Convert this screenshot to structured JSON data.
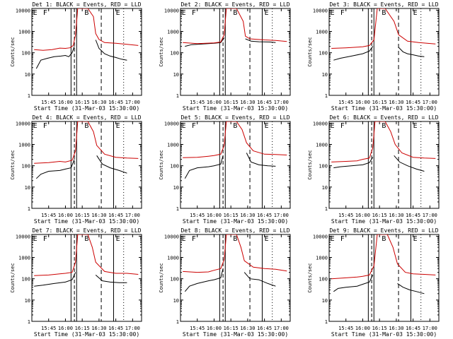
{
  "figure": {
    "xtick_labels": [
      "15:45",
      "16:00",
      "16:15",
      "16:30",
      "16:45",
      "17:00"
    ],
    "xlabel": "Start Time (31-Mar-03 15:30:00)",
    "ylabel": "Counts/sec",
    "ytick_labels": [
      "1",
      "10",
      "100",
      "1000",
      "10000"
    ]
  },
  "chart_data": [
    {
      "type": "line",
      "title": "Det 1: BLACK = Events, RED = LLD",
      "xlim": [
        "15:30",
        "17:08"
      ],
      "ylim": [
        1,
        12000
      ],
      "yscale": "log",
      "markers": [
        "E",
        "F",
        "B",
        "E"
      ],
      "series": [
        {
          "name": "Events",
          "color": "#000000",
          "x": [
            "15:34",
            "15:38",
            "15:44",
            "15:50",
            "15:56",
            "16:00",
            "16:03",
            "16:06",
            "16:08"
          ],
          "y": [
            18,
            45,
            55,
            65,
            70,
            75,
            65,
            100,
            200
          ]
        },
        {
          "name": "Events",
          "color": "#000000",
          "x": [
            "16:27",
            "16:30",
            "16:35",
            "16:40",
            "16:45",
            "16:50",
            "16:55"
          ],
          "y": [
            400,
            160,
            90,
            70,
            60,
            50,
            45
          ]
        },
        {
          "name": "LLD",
          "color": "#cc0000",
          "x": [
            "15:32",
            "15:40",
            "15:48",
            "15:55",
            "16:00",
            "16:04",
            "16:07",
            "16:09",
            "16:11",
            "16:20",
            "16:25",
            "16:27",
            "16:30",
            "16:35",
            "16:45",
            "16:55",
            "17:05"
          ],
          "y": [
            140,
            130,
            140,
            165,
            160,
            170,
            220,
            700,
            12000,
            12000,
            5000,
            800,
            420,
            300,
            280,
            250,
            220
          ]
        }
      ]
    },
    {
      "type": "line",
      "title": "Det 2: BLACK = Events, RED = LLD",
      "xlim": [
        "15:30",
        "17:08"
      ],
      "ylim": [
        1,
        12000
      ],
      "yscale": "log",
      "markers": [
        "E",
        "F",
        "B",
        "E"
      ],
      "series": [
        {
          "name": "Events",
          "color": "#000000",
          "x": [
            "15:34",
            "15:40",
            "15:50",
            "16:00",
            "16:06",
            "16:09"
          ],
          "y": [
            200,
            240,
            260,
            280,
            300,
            500
          ]
        },
        {
          "name": "Events",
          "color": "#000000",
          "x": [
            "16:28",
            "16:33",
            "16:40",
            "16:50",
            "16:55"
          ],
          "y": [
            450,
            350,
            330,
            320,
            300
          ]
        },
        {
          "name": "LLD",
          "color": "#cc0000",
          "x": [
            "15:32",
            "15:45",
            "16:00",
            "16:06",
            "16:09",
            "16:11",
            "16:20",
            "16:26",
            "16:28",
            "16:32",
            "16:45",
            "16:55",
            "17:05"
          ],
          "y": [
            300,
            270,
            290,
            320,
            700,
            12000,
            12000,
            3000,
            600,
            450,
            400,
            380,
            340
          ]
        }
      ]
    },
    {
      "type": "line",
      "title": "Det 3: BLACK = Events, RED = LLD",
      "xlim": [
        "15:30",
        "17:08"
      ],
      "ylim": [
        1,
        12000
      ],
      "yscale": "log",
      "markers": [
        "E",
        "F",
        "B",
        "E"
      ],
      "series": [
        {
          "name": "Events",
          "color": "#000000",
          "x": [
            "15:34",
            "15:40",
            "15:50",
            "16:00",
            "16:06",
            "16:09"
          ],
          "y": [
            45,
            55,
            70,
            90,
            120,
            200
          ]
        },
        {
          "name": "Events",
          "color": "#000000",
          "x": [
            "16:32",
            "16:36",
            "16:40",
            "16:45",
            "16:50",
            "16:55"
          ],
          "y": [
            180,
            110,
            90,
            80,
            70,
            65
          ]
        },
        {
          "name": "LLD",
          "color": "#cc0000",
          "x": [
            "15:32",
            "15:45",
            "16:00",
            "16:06",
            "16:10",
            "16:13",
            "16:20",
            "16:28",
            "16:32",
            "16:40",
            "16:50",
            "17:05"
          ],
          "y": [
            160,
            170,
            190,
            220,
            400,
            12000,
            12000,
            3000,
            700,
            350,
            300,
            260
          ]
        }
      ]
    },
    {
      "type": "line",
      "title": "Det 4: BLACK = Events, RED = LLD",
      "xlim": [
        "15:30",
        "17:08"
      ],
      "ylim": [
        1,
        12000
      ],
      "yscale": "log",
      "markers": [
        "E",
        "F",
        "B",
        "E"
      ],
      "series": [
        {
          "name": "Events",
          "color": "#000000",
          "x": [
            "15:34",
            "15:38",
            "15:45",
            "15:55",
            "16:00",
            "16:05",
            "16:08"
          ],
          "y": [
            25,
            40,
            55,
            60,
            70,
            80,
            200
          ]
        },
        {
          "name": "Events",
          "color": "#000000",
          "x": [
            "16:28",
            "16:33",
            "16:40",
            "16:48",
            "16:55"
          ],
          "y": [
            300,
            120,
            80,
            60,
            45
          ]
        },
        {
          "name": "LLD",
          "color": "#cc0000",
          "x": [
            "15:32",
            "15:45",
            "15:55",
            "16:00",
            "16:06",
            "16:09",
            "16:11",
            "16:20",
            "16:25",
            "16:28",
            "16:35",
            "16:45",
            "16:55",
            "17:05"
          ],
          "y": [
            130,
            140,
            160,
            150,
            180,
            500,
            12000,
            12000,
            4000,
            900,
            350,
            250,
            230,
            220
          ]
        }
      ]
    },
    {
      "type": "line",
      "title": "Det 5: BLACK = Events, RED = LLD",
      "xlim": [
        "15:30",
        "17:08"
      ],
      "ylim": [
        1,
        12000
      ],
      "yscale": "log",
      "markers": [
        "E",
        "F",
        "B",
        "E"
      ],
      "series": [
        {
          "name": "Events",
          "color": "#000000",
          "x": [
            "15:34",
            "15:38",
            "15:45",
            "15:55",
            "16:00",
            "16:06",
            "16:08"
          ],
          "y": [
            25,
            60,
            80,
            90,
            100,
            120,
            300
          ]
        },
        {
          "name": "Events",
          "color": "#000000",
          "x": [
            "16:29",
            "16:33",
            "16:40",
            "16:48",
            "16:55"
          ],
          "y": [
            400,
            150,
            110,
            100,
            95
          ]
        },
        {
          "name": "LLD",
          "color": "#cc0000",
          "x": [
            "15:32",
            "15:45",
            "15:55",
            "16:00",
            "16:06",
            "16:09",
            "16:11",
            "16:20",
            "16:25",
            "16:29",
            "16:35",
            "16:45",
            "16:55",
            "17:05"
          ],
          "y": [
            240,
            250,
            280,
            300,
            350,
            900,
            12000,
            12000,
            5000,
            1200,
            500,
            350,
            340,
            320
          ]
        }
      ]
    },
    {
      "type": "line",
      "title": "Det 6: BLACK = Events, RED = LLD",
      "xlim": [
        "15:30",
        "17:08"
      ],
      "ylim": [
        1,
        12000
      ],
      "yscale": "log",
      "markers": [
        "E",
        "F",
        "B",
        "E"
      ],
      "series": [
        {
          "name": "Events",
          "color": "#000000",
          "x": [
            "15:34",
            "15:40",
            "15:50",
            "16:00",
            "16:06",
            "16:09"
          ],
          "y": [
            80,
            90,
            100,
            110,
            140,
            250
          ]
        },
        {
          "name": "Events",
          "color": "#000000",
          "x": [
            "16:28",
            "16:33",
            "16:40",
            "16:48",
            "16:55"
          ],
          "y": [
            300,
            150,
            100,
            70,
            55
          ]
        },
        {
          "name": "LLD",
          "color": "#cc0000",
          "x": [
            "15:32",
            "15:45",
            "15:55",
            "16:00",
            "16:06",
            "16:09",
            "16:11",
            "16:20",
            "16:25",
            "16:29",
            "16:35",
            "16:45",
            "16:55",
            "17:05"
          ],
          "y": [
            150,
            160,
            170,
            200,
            230,
            700,
            12000,
            12000,
            4000,
            1000,
            400,
            250,
            230,
            220
          ]
        }
      ]
    },
    {
      "type": "line",
      "title": "Det 7: BLACK = Events, RED = LLD",
      "xlim": [
        "15:30",
        "17:08"
      ],
      "ylim": [
        1,
        12000
      ],
      "yscale": "log",
      "markers": [
        "E",
        "F",
        "B",
        "E"
      ],
      "series": [
        {
          "name": "Events",
          "color": "#000000",
          "x": [
            "15:32",
            "15:40",
            "15:50",
            "16:00",
            "16:06",
            "16:09"
          ],
          "y": [
            45,
            50,
            60,
            70,
            90,
            200
          ]
        },
        {
          "name": "Events",
          "color": "#000000",
          "x": [
            "16:27",
            "16:33",
            "16:40",
            "16:48",
            "16:55"
          ],
          "y": [
            150,
            80,
            70,
            65,
            65
          ]
        },
        {
          "name": "LLD",
          "color": "#cc0000",
          "x": [
            "15:32",
            "15:45",
            "15:55",
            "16:00",
            "16:06",
            "16:09",
            "16:11",
            "16:20",
            "16:24",
            "16:27",
            "16:35",
            "16:45",
            "16:55",
            "17:05"
          ],
          "y": [
            140,
            150,
            170,
            180,
            200,
            600,
            12000,
            12000,
            3000,
            600,
            220,
            180,
            180,
            160
          ]
        }
      ]
    },
    {
      "type": "line",
      "title": "Det 8: BLACK = Events, RED = LLD",
      "xlim": [
        "15:30",
        "17:08"
      ],
      "ylim": [
        1,
        12000
      ],
      "yscale": "log",
      "markers": [
        "E",
        "F",
        "B",
        "E"
      ],
      "series": [
        {
          "name": "Events",
          "color": "#000000",
          "x": [
            "15:34",
            "15:38",
            "15:45",
            "15:55",
            "16:00",
            "16:06",
            "16:08"
          ],
          "y": [
            25,
            45,
            60,
            80,
            90,
            110,
            300
          ]
        },
        {
          "name": "Events",
          "color": "#000000",
          "x": [
            "16:27",
            "16:32",
            "16:40",
            "16:48",
            "16:55"
          ],
          "y": [
            200,
            100,
            90,
            60,
            45
          ]
        },
        {
          "name": "LLD",
          "color": "#cc0000",
          "x": [
            "15:32",
            "15:45",
            "15:55",
            "16:00",
            "16:06",
            "16:09",
            "16:11",
            "16:20",
            "16:24",
            "16:27",
            "16:35",
            "16:45",
            "16:55",
            "17:05"
          ],
          "y": [
            220,
            200,
            210,
            250,
            300,
            800,
            12000,
            12000,
            3000,
            700,
            350,
            300,
            280,
            230
          ]
        }
      ]
    },
    {
      "type": "line",
      "title": "Det 9: BLACK = Events, RED = LLD",
      "xlim": [
        "15:30",
        "17:08"
      ],
      "ylim": [
        1,
        12000
      ],
      "yscale": "log",
      "markers": [
        "E",
        "F",
        "B",
        "E"
      ],
      "series": [
        {
          "name": "Events",
          "color": "#000000",
          "x": [
            "15:34",
            "15:38",
            "15:45",
            "15:55",
            "16:00",
            "16:06",
            "16:09"
          ],
          "y": [
            25,
            35,
            40,
            45,
            55,
            70,
            150
          ]
        },
        {
          "name": "Events",
          "color": "#000000",
          "x": [
            "16:31",
            "16:36",
            "16:42",
            "16:48",
            "16:55"
          ],
          "y": [
            60,
            40,
            30,
            25,
            20
          ]
        },
        {
          "name": "LLD",
          "color": "#cc0000",
          "x": [
            "15:32",
            "15:45",
            "15:55",
            "16:00",
            "16:06",
            "16:10",
            "16:13",
            "16:22",
            "16:27",
            "16:31",
            "16:38",
            "16:45",
            "16:55",
            "17:05"
          ],
          "y": [
            100,
            110,
            120,
            130,
            150,
            400,
            12000,
            12000,
            3000,
            500,
            200,
            170,
            160,
            150
          ]
        }
      ]
    }
  ]
}
